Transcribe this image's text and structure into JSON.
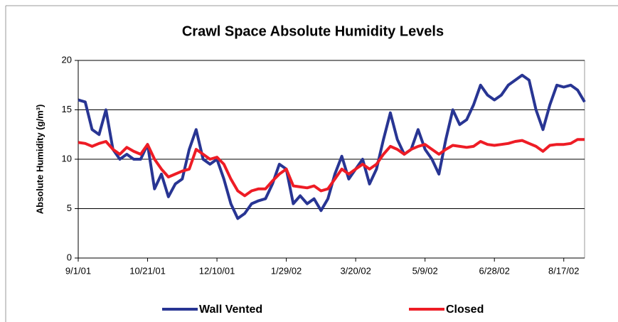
{
  "chart_data": {
    "type": "line",
    "title": "Crawl Space Absolute Humidity Levels",
    "y_label": "Absolute Humidity (g/m³)",
    "x": [
      "9/1/01",
      "9/6/01",
      "9/11/01",
      "9/16/01",
      "9/21/01",
      "9/26/01",
      "10/1/01",
      "10/6/01",
      "10/11/01",
      "10/16/01",
      "10/21/01",
      "10/26/01",
      "10/31/01",
      "11/5/01",
      "11/10/01",
      "11/15/01",
      "11/20/01",
      "11/25/01",
      "11/30/01",
      "12/5/01",
      "12/10/01",
      "12/15/01",
      "12/20/01",
      "12/25/01",
      "12/30/01",
      "1/4/02",
      "1/9/02",
      "1/14/02",
      "1/19/02",
      "1/24/02",
      "1/29/02",
      "2/3/02",
      "2/8/02",
      "2/13/02",
      "2/18/02",
      "2/23/02",
      "2/28/02",
      "3/5/02",
      "3/10/02",
      "3/15/02",
      "3/20/02",
      "3/25/02",
      "3/30/02",
      "4/4/02",
      "4/9/02",
      "4/14/02",
      "4/19/02",
      "4/24/02",
      "4/29/02",
      "5/4/02",
      "5/9/02",
      "5/14/02",
      "5/19/02",
      "5/24/02",
      "5/29/02",
      "6/3/02",
      "6/8/02",
      "6/13/02",
      "6/18/02",
      "6/23/02",
      "6/28/02",
      "7/3/02",
      "7/8/02",
      "7/13/02",
      "7/18/02",
      "7/23/02",
      "7/28/02",
      "8/2/02",
      "8/7/02",
      "8/12/02",
      "8/17/02",
      "8/22/02",
      "8/27/02",
      "9/1/02"
    ],
    "series": [
      {
        "name": "Wall Vented",
        "color": "#283593",
        "values": [
          16,
          15.8,
          13,
          12.5,
          15,
          11,
          10,
          10.5,
          10,
          10,
          11.5,
          7,
          8.5,
          6.2,
          7.5,
          8,
          11,
          13,
          10,
          9.5,
          10,
          8,
          5.5,
          4,
          4.5,
          5.5,
          5.8,
          6,
          7.5,
          9.5,
          9,
          5.5,
          6.3,
          5.5,
          6,
          4.8,
          6,
          8.5,
          10.3,
          8,
          9,
          10,
          7.5,
          9,
          12,
          14.7,
          12,
          10.5,
          11,
          13,
          11,
          10,
          8.5,
          12,
          15,
          13.5,
          14,
          15.5,
          17.5,
          16.5,
          16,
          16.5,
          17.5,
          18,
          18.5,
          18,
          15,
          13,
          15.5,
          17.5,
          17.3,
          17.5,
          17,
          15.8
        ]
      },
      {
        "name": "Closed",
        "color": "#ee1c25",
        "values": [
          11.7,
          11.6,
          11.3,
          11.6,
          11.8,
          11,
          10.5,
          11.2,
          10.8,
          10.5,
          11.5,
          10,
          9,
          8.2,
          8.5,
          8.8,
          9,
          11,
          10.5,
          10,
          10.2,
          9.5,
          8,
          6.8,
          6.3,
          6.8,
          7,
          7,
          7.8,
          8.5,
          9,
          7.3,
          7.2,
          7.1,
          7.3,
          6.8,
          7,
          8,
          9,
          8.5,
          9,
          9.5,
          9,
          9.5,
          10.5,
          11.3,
          11,
          10.5,
          11,
          11.3,
          11.5,
          11,
          10.5,
          11,
          11.4,
          11.3,
          11.2,
          11.3,
          11.8,
          11.5,
          11.4,
          11.5,
          11.6,
          11.8,
          11.9,
          11.6,
          11.3,
          10.8,
          11.4,
          11.5,
          11.5,
          11.6,
          12,
          12
        ]
      }
    ],
    "xlim": [
      "9/1/01",
      "9/1/02"
    ],
    "xticks": [
      "9/1/01",
      "10/21/01",
      "12/10/01",
      "1/29/02",
      "3/20/02",
      "5/9/02",
      "6/28/02",
      "8/17/02"
    ],
    "ylim": [
      0,
      20
    ],
    "yticks": [
      0,
      5,
      10,
      15,
      20
    ],
    "grid": true
  }
}
